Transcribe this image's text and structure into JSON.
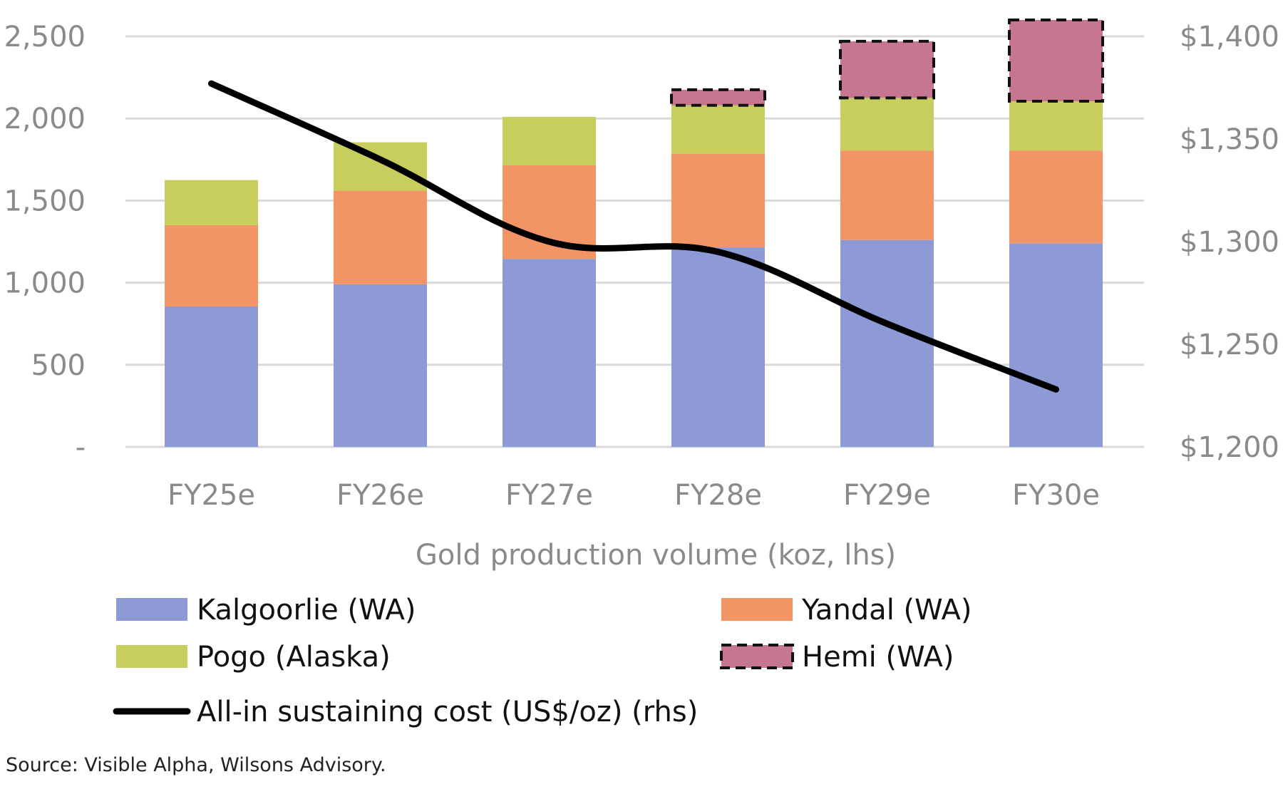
{
  "chart_data": {
    "type": "bar",
    "stacked": true,
    "categories": [
      "FY25e",
      "FY26e",
      "FY27e",
      "FY28e",
      "FY29e",
      "FY30e"
    ],
    "series": [
      {
        "name": "Kalgoorlie (WA)",
        "values": [
          855,
          990,
          1145,
          1215,
          1260,
          1240
        ],
        "color": "#8E9AD6"
      },
      {
        "name": "Yandal (WA)",
        "values": [
          495,
          570,
          570,
          570,
          545,
          565
        ],
        "color": "#F29566"
      },
      {
        "name": "Pogo (Alaska)",
        "values": [
          275,
          295,
          295,
          295,
          320,
          300
        ],
        "color": "#C7CE5E"
      },
      {
        "name": "Hemi (WA)",
        "values": [
          0,
          0,
          0,
          95,
          345,
          495
        ],
        "color": "#C7768F",
        "border": "dashed"
      }
    ],
    "line_series": {
      "name": "All-in sustaining cost (US$/oz) (rhs)",
      "axis": "right",
      "values": [
        1377,
        1340,
        1300,
        1295,
        1260,
        1228
      ],
      "color": "#000000"
    },
    "xlabel": "Gold production volume (koz, lhs)",
    "ylim": [
      0,
      2500
    ],
    "yticks": [
      0,
      500,
      1000,
      1500,
      2000,
      2500
    ],
    "ytick_labels": [
      "-",
      "500",
      "1,000",
      "1,500",
      "2,000",
      "2,500"
    ],
    "y2lim": [
      1200,
      1400
    ],
    "y2ticks": [
      1200,
      1250,
      1300,
      1350,
      1400
    ],
    "y2tick_labels": [
      "$1,200",
      "$1,250",
      "$1,300",
      "$1,350",
      "$1,400"
    ],
    "grid": true,
    "legend_placement": "bottom"
  },
  "source": "Source: Visible Alpha, Wilsons Advisory."
}
